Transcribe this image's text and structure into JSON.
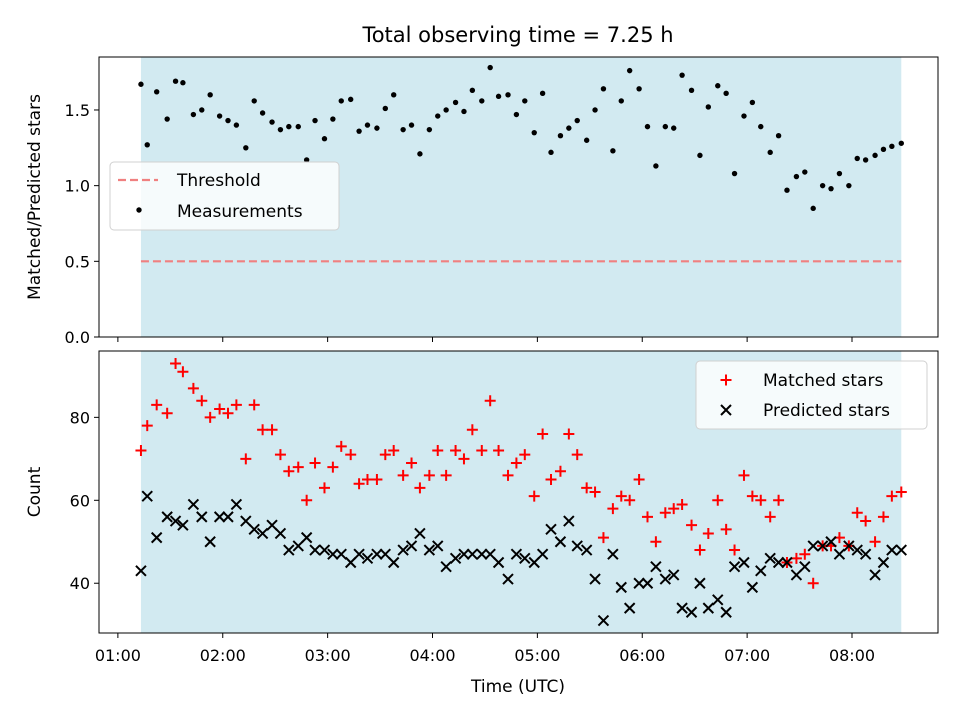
{
  "title": "Total observing time = 7.25 h",
  "xlabel": "Time (UTC)",
  "colors": {
    "shade": "#add8e6",
    "threshold": "#f08080",
    "matched": "#ff0000",
    "predicted": "#000000",
    "measurement": "#000000"
  },
  "chart_data": [
    {
      "type": "scatter",
      "panel": "top",
      "ylabel": "Matched/Predicted stars",
      "x_axis": "time (hours UTC)",
      "xlim": [
        0.82,
        8.82
      ],
      "ylim": [
        0.0,
        1.85
      ],
      "yticks": [
        0.0,
        0.5,
        1.0,
        1.5
      ],
      "ytick_labels": [
        "0.0",
        "0.5",
        "1.0",
        "1.5"
      ],
      "shaded_span": [
        1.22,
        8.47
      ],
      "legend": {
        "position": "center-left",
        "entries": [
          "Threshold",
          "Measurements"
        ]
      },
      "threshold": {
        "name": "Threshold",
        "value": 0.5,
        "style": "dashed"
      },
      "series": [
        {
          "name": "Measurements",
          "x": [
            1.22,
            1.28,
            1.37,
            1.47,
            1.55,
            1.62,
            1.72,
            1.8,
            1.88,
            1.97,
            2.05,
            2.13,
            2.22,
            2.3,
            2.38,
            2.47,
            2.55,
            2.63,
            2.72,
            2.8,
            2.88,
            2.97,
            3.05,
            3.13,
            3.22,
            3.3,
            3.38,
            3.47,
            3.55,
            3.63,
            3.72,
            3.8,
            3.88,
            3.97,
            4.05,
            4.13,
            4.22,
            4.3,
            4.38,
            4.47,
            4.55,
            4.63,
            4.72,
            4.8,
            4.88,
            4.97,
            5.05,
            5.13,
            5.22,
            5.3,
            5.38,
            5.47,
            5.55,
            5.63,
            5.72,
            5.8,
            5.88,
            5.97,
            6.05,
            6.13,
            6.22,
            6.3,
            6.38,
            6.47,
            6.55,
            6.63,
            6.72,
            6.8,
            6.88,
            6.97,
            7.05,
            7.13,
            7.22,
            7.3,
            7.38,
            7.47,
            7.55,
            7.63,
            7.72,
            7.8,
            7.88,
            7.97,
            8.05,
            8.13,
            8.22,
            8.3,
            8.38,
            8.47
          ],
          "y": [
            1.67,
            1.27,
            1.62,
            1.44,
            1.69,
            1.68,
            1.47,
            1.5,
            1.6,
            1.46,
            1.43,
            1.4,
            1.25,
            1.56,
            1.48,
            1.42,
            1.37,
            1.39,
            1.39,
            1.17,
            1.43,
            1.31,
            1.44,
            1.56,
            1.57,
            1.36,
            1.4,
            1.38,
            1.51,
            1.6,
            1.37,
            1.4,
            1.21,
            1.37,
            1.46,
            1.5,
            1.55,
            1.49,
            1.63,
            1.56,
            1.78,
            1.59,
            1.6,
            1.47,
            1.56,
            1.35,
            1.61,
            1.22,
            1.33,
            1.38,
            1.43,
            1.3,
            1.5,
            1.64,
            1.23,
            1.56,
            1.76,
            1.64,
            1.39,
            1.13,
            1.39,
            1.38,
            1.73,
            1.63,
            1.2,
            1.52,
            1.66,
            1.61,
            1.08,
            1.46,
            1.55,
            1.39,
            1.22,
            1.33,
            0.97,
            1.06,
            1.09,
            0.85,
            1.0,
            0.98,
            1.08,
            1.0,
            1.18,
            1.17,
            1.2,
            1.24,
            1.26,
            1.28
          ]
        }
      ]
    },
    {
      "type": "scatter",
      "panel": "bottom",
      "ylabel": "Count",
      "x_axis": "time (hours UTC)",
      "xlim": [
        0.82,
        8.82
      ],
      "ylim": [
        28,
        96
      ],
      "yticks": [
        40,
        60,
        80
      ],
      "ytick_labels": [
        "40",
        "60",
        "80"
      ],
      "xticks": [
        1,
        2,
        3,
        4,
        5,
        6,
        7,
        8
      ],
      "xtick_labels": [
        "01:00",
        "02:00",
        "03:00",
        "04:00",
        "05:00",
        "06:00",
        "07:00",
        "08:00"
      ],
      "shaded_span": [
        1.22,
        8.47
      ],
      "legend": {
        "position": "top-right",
        "entries": [
          "Matched stars",
          "Predicted stars"
        ]
      },
      "series": [
        {
          "name": "Matched stars",
          "marker": "plus",
          "x": [
            1.22,
            1.28,
            1.37,
            1.47,
            1.55,
            1.62,
            1.72,
            1.8,
            1.88,
            1.97,
            2.05,
            2.13,
            2.22,
            2.3,
            2.38,
            2.47,
            2.55,
            2.63,
            2.72,
            2.8,
            2.88,
            2.97,
            3.05,
            3.13,
            3.22,
            3.3,
            3.38,
            3.47,
            3.55,
            3.63,
            3.72,
            3.8,
            3.88,
            3.97,
            4.05,
            4.13,
            4.22,
            4.3,
            4.38,
            4.47,
            4.55,
            4.63,
            4.72,
            4.8,
            4.88,
            4.97,
            5.05,
            5.13,
            5.22,
            5.3,
            5.38,
            5.47,
            5.55,
            5.63,
            5.72,
            5.8,
            5.88,
            5.97,
            6.05,
            6.13,
            6.22,
            6.3,
            6.38,
            6.47,
            6.55,
            6.63,
            6.72,
            6.8,
            6.88,
            6.97,
            7.05,
            7.13,
            7.22,
            7.3,
            7.38,
            7.47,
            7.55,
            7.63,
            7.72,
            7.8,
            7.88,
            7.97,
            8.05,
            8.13,
            8.22,
            8.3,
            8.38,
            8.47
          ],
          "y": [
            72,
            78,
            83,
            81,
            93,
            91,
            87,
            84,
            80,
            82,
            81,
            83,
            70,
            83,
            77,
            77,
            71,
            67,
            68,
            60,
            69,
            63,
            68,
            73,
            71,
            64,
            65,
            65,
            71,
            72,
            66,
            69,
            63,
            66,
            72,
            66,
            72,
            70,
            77,
            72,
            84,
            72,
            66,
            69,
            71,
            61,
            76,
            65,
            67,
            76,
            71,
            63,
            62,
            51,
            58,
            61,
            60,
            65,
            56,
            50,
            57,
            58,
            59,
            54,
            48,
            52,
            60,
            53,
            48,
            66,
            61,
            60,
            56,
            60,
            45,
            46,
            47,
            40,
            49,
            49,
            51,
            49,
            57,
            55,
            50,
            56,
            61,
            62
          ]
        },
        {
          "name": "Predicted stars",
          "marker": "x",
          "x": [
            1.22,
            1.28,
            1.37,
            1.47,
            1.55,
            1.62,
            1.72,
            1.8,
            1.88,
            1.97,
            2.05,
            2.13,
            2.22,
            2.3,
            2.38,
            2.47,
            2.55,
            2.63,
            2.72,
            2.8,
            2.88,
            2.97,
            3.05,
            3.13,
            3.22,
            3.3,
            3.38,
            3.47,
            3.55,
            3.63,
            3.72,
            3.8,
            3.88,
            3.97,
            4.05,
            4.13,
            4.22,
            4.3,
            4.38,
            4.47,
            4.55,
            4.63,
            4.72,
            4.8,
            4.88,
            4.97,
            5.05,
            5.13,
            5.22,
            5.3,
            5.38,
            5.47,
            5.55,
            5.63,
            5.72,
            5.8,
            5.88,
            5.97,
            6.05,
            6.13,
            6.22,
            6.3,
            6.38,
            6.47,
            6.55,
            6.63,
            6.72,
            6.8,
            6.88,
            6.97,
            7.05,
            7.13,
            7.22,
            7.3,
            7.38,
            7.47,
            7.55,
            7.63,
            7.72,
            7.8,
            7.88,
            7.97,
            8.05,
            8.13,
            8.22,
            8.3,
            8.38,
            8.47
          ],
          "y": [
            43,
            61,
            51,
            56,
            55,
            54,
            59,
            56,
            50,
            56,
            56,
            59,
            55,
            53,
            52,
            54,
            52,
            48,
            49,
            51,
            48,
            48,
            47,
            47,
            45,
            47,
            46,
            47,
            47,
            45,
            48,
            49,
            52,
            48,
            49,
            44,
            46,
            47,
            47,
            47,
            47,
            45,
            41,
            47,
            46,
            45,
            47,
            53,
            50,
            55,
            49,
            48,
            41,
            31,
            47,
            39,
            34,
            40,
            40,
            44,
            41,
            42,
            34,
            33,
            40,
            34,
            36,
            33,
            44,
            45,
            39,
            43,
            46,
            45,
            45,
            42,
            44,
            49,
            49,
            50,
            47,
            49,
            48,
            47,
            42,
            45,
            48,
            48
          ]
        }
      ]
    }
  ]
}
